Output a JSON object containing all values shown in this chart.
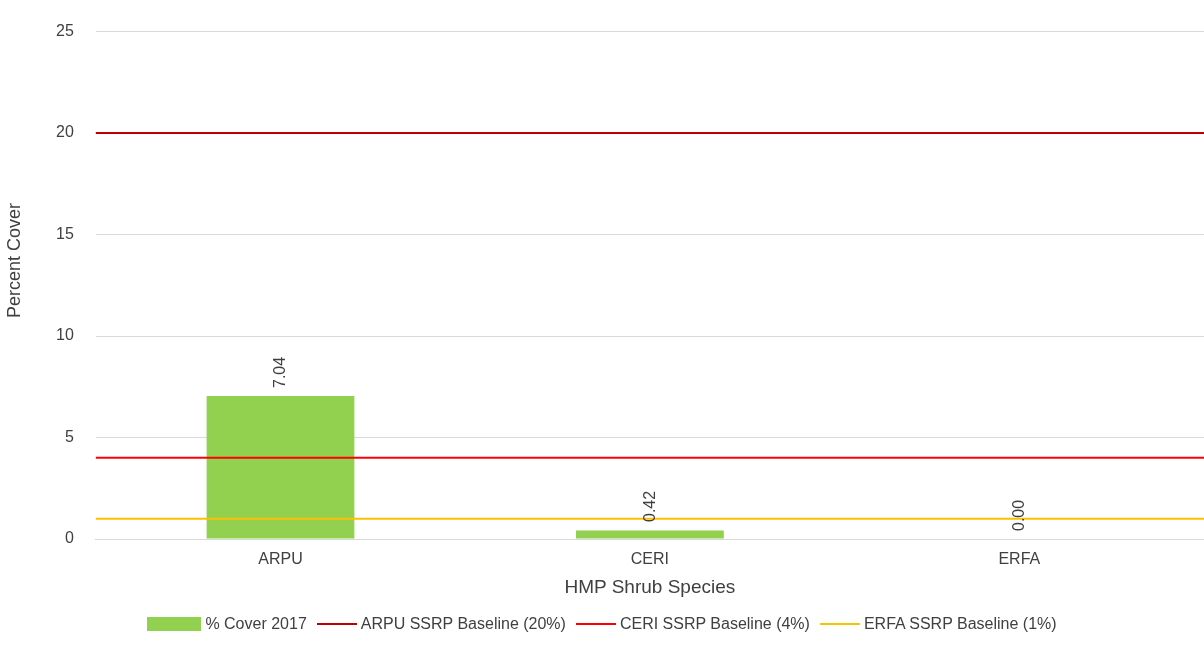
{
  "chart_data": {
    "type": "bar",
    "xlabel": "HMP Shrub Species",
    "ylabel": "Percent Cover",
    "categories": [
      "ARPU",
      "CERI",
      "ERFA"
    ],
    "series": [
      {
        "name": "% Cover 2017",
        "color": "#92d050",
        "values": [
          7.04,
          0.42,
          0.0
        ]
      }
    ],
    "value_labels": [
      "7.04",
      "0.42",
      "0.00"
    ],
    "ref_lines": [
      {
        "axis": "y",
        "value": 20,
        "label": "ARPU SSRP Baseline (20%)",
        "color": "#c00000"
      },
      {
        "axis": "y",
        "value": 4,
        "label": "CERI SSRP Baseline (4%)",
        "color": "#ff0000"
      },
      {
        "axis": "y",
        "value": 1,
        "label": "ERFA SSRP Baseline (1%)",
        "color": "#ffc000"
      }
    ],
    "ylim": [
      0,
      25
    ],
    "yticks": [
      0,
      5,
      10,
      15,
      20,
      25
    ],
    "grid": "y",
    "legend": "bottom"
  }
}
